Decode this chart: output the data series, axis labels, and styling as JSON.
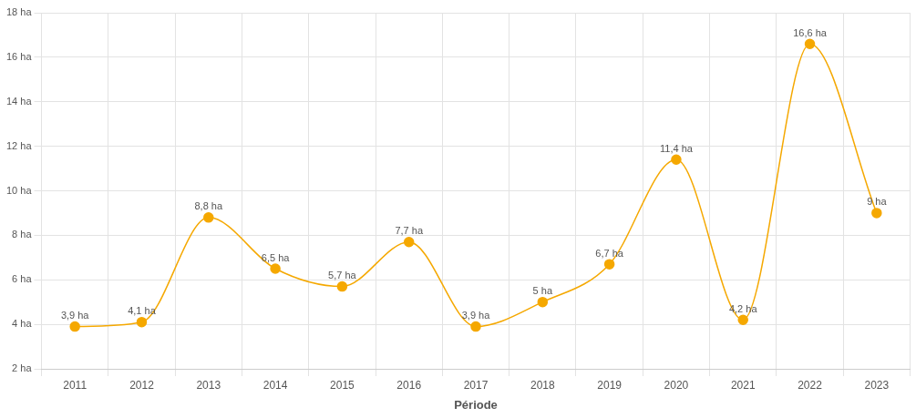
{
  "chart_data": {
    "type": "line",
    "xlabel": "Période",
    "categories": [
      "2011",
      "2012",
      "2013",
      "2014",
      "2015",
      "2016",
      "2017",
      "2018",
      "2019",
      "2020",
      "2021",
      "2022",
      "2023"
    ],
    "series": [
      {
        "color": "#f5a800",
        "values": [
          3.9,
          4.1,
          8.8,
          6.5,
          5.7,
          7.7,
          3.9,
          5,
          6.7,
          11.4,
          4.2,
          16.6,
          9
        ],
        "value_labels": [
          "3,9 ha",
          "4,1 ha",
          "8,8 ha",
          "6,5 ha",
          "5,7 ha",
          "7,7 ha",
          "3,9 ha",
          "5 ha",
          "6,7 ha",
          "11,4 ha",
          "4,2 ha",
          "16,6 ha",
          "9 ha"
        ]
      }
    ],
    "ylim": [
      2,
      18
    ],
    "yticks": [
      {
        "value": 2,
        "label": "2 ha"
      },
      {
        "value": 4,
        "label": "4 ha"
      },
      {
        "value": 6,
        "label": "6 ha"
      },
      {
        "value": 8,
        "label": "8 ha"
      },
      {
        "value": 10,
        "label": "10 ha"
      },
      {
        "value": 12,
        "label": "12 ha"
      },
      {
        "value": 14,
        "label": "14 ha"
      },
      {
        "value": 16,
        "label": "16 ha"
      },
      {
        "value": 18,
        "label": "18 ha"
      }
    ],
    "grid": true,
    "marker": "circle",
    "line_style": "solid",
    "legend": false
  }
}
